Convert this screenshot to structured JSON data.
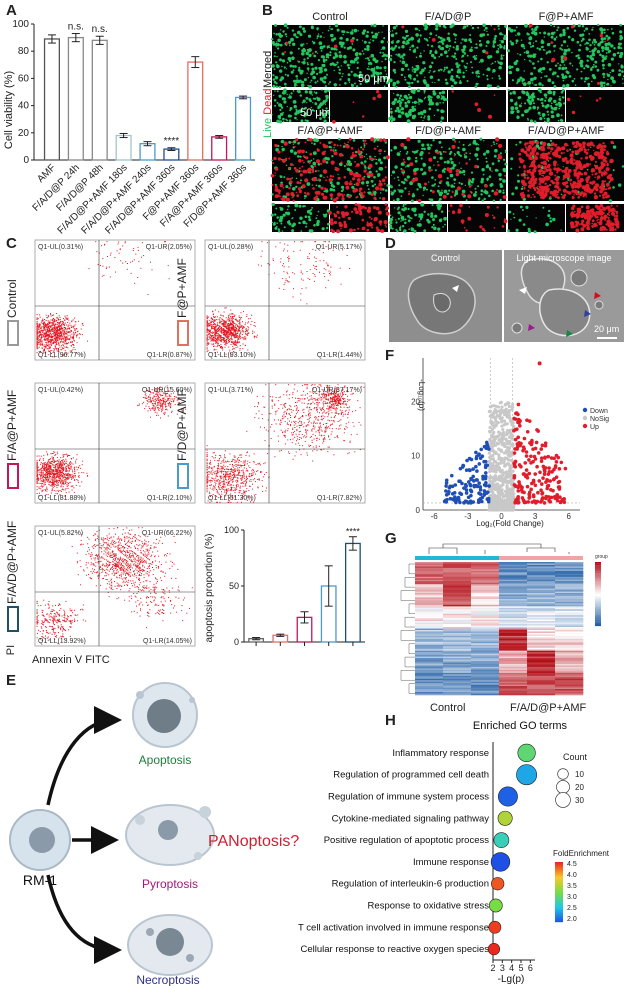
{
  "panel_labels": {
    "a": "A",
    "b": "B",
    "c": "C",
    "d": "D",
    "e": "E",
    "f": "F",
    "g": "G",
    "h": "H"
  },
  "colors": {
    "green": "#22c55e",
    "red": "#e11d2b",
    "blue": "#1f4fb6",
    "accent_pink": "#c2185b",
    "cyan": "#21b8d6"
  },
  "chart_data": [
    {
      "id": "cell-viability",
      "type": "bar",
      "ylabel": "Cell viability (%)",
      "ylim": [
        0,
        100
      ],
      "yticks": [
        0,
        20,
        40,
        60,
        80,
        100
      ],
      "categories": [
        "AMF",
        "F/A/D@P 24h",
        "F/A/D@P 48h",
        "F/A/D@P+AMF 180s",
        "F/A/D@P+AMF 240s",
        "F/A/D@P+AMF 360s",
        "F@P+AMF 360s",
        "F/A@P+AMF 360s",
        "F/D@P+AMF 360s"
      ],
      "values": [
        89,
        90,
        88,
        18,
        12,
        8,
        72,
        17,
        46
      ],
      "errors": [
        3,
        3,
        3,
        1.5,
        1.5,
        1,
        4,
        1,
        1
      ],
      "edge_colors": [
        "#555555",
        "#888888",
        "#888888",
        "#9ec7c7",
        "#4c9acb",
        "#1f4f8b",
        "#e07060",
        "#c2185b",
        "#4c9acb"
      ],
      "annotations": [
        {
          "index": 1,
          "text": "n.s."
        },
        {
          "index": 2,
          "text": "n.s."
        },
        {
          "index": 5,
          "text": "****"
        }
      ]
    },
    {
      "id": "apoptosis-proportion",
      "type": "bar",
      "ylabel": "apoptosis proportion (%)",
      "ylim": [
        0,
        100
      ],
      "yticks": [
        0,
        50,
        100
      ],
      "values": [
        3,
        6,
        22,
        50,
        88
      ],
      "errors": [
        1,
        1,
        5,
        18,
        6
      ],
      "edge_colors": [
        "#666666",
        "#e07060",
        "#c2185b",
        "#4c9acb",
        "#1f4f6b"
      ],
      "annotations": [
        {
          "index": 4,
          "text": "****"
        }
      ]
    },
    {
      "id": "volcano",
      "type": "scatter",
      "xlabel": "Log₂(Fold Change)",
      "ylabel": "-Log₁₀(p)",
      "xlim": [
        -7,
        7
      ],
      "ylim": [
        0,
        28
      ],
      "xticks": [
        -6,
        -3,
        0,
        3,
        6
      ],
      "yticks": [
        0,
        10,
        20
      ],
      "legend": [
        {
          "label": "Down",
          "color": "#1f4fb6"
        },
        {
          "label": "NoSig",
          "color": "#c8c8c8"
        },
        {
          "label": "Up",
          "color": "#e11d2b"
        }
      ]
    },
    {
      "id": "go-bubble",
      "type": "scatter",
      "title": "Enriched GO terms",
      "xlabel": "-Lg(p)",
      "xticks": [
        2,
        3,
        4,
        5,
        6
      ],
      "xlim": [
        2,
        6.5
      ],
      "terms": [
        "Inflammatory response",
        "Regulation of programmed cell death",
        "Regulation of immune system process",
        "Cytokine-mediated signaling pathway",
        "Positive regulation of apoptotic process",
        "Immune response",
        "Regulation of interleukin-6 production",
        "Response to oxidative stress",
        "T cell activation involved in immune response",
        "Cellular response to reactive oxygen species"
      ],
      "neg_log_p": [
        5.6,
        5.6,
        3.6,
        3.3,
        2.9,
        2.8,
        2.5,
        2.3,
        2.2,
        2.1
      ],
      "count": [
        22,
        32,
        28,
        12,
        14,
        26,
        8,
        9,
        7,
        6
      ],
      "fold_enrichment": [
        3.0,
        2.3,
        1.9,
        3.5,
        2.7,
        1.8,
        4.4,
        3.2,
        4.5,
        4.6
      ],
      "count_legend": {
        "title": "Count",
        "values": [
          10,
          20,
          30
        ]
      },
      "color_legend": {
        "title": "FoldEnrichment",
        "ticks": [
          4.5,
          4.0,
          3.5,
          3.0,
          2.5,
          2.0
        ]
      }
    }
  ],
  "panel_b": {
    "titles": [
      "Control",
      "F/A/D@P",
      "F@P+AMF",
      "F/A@P+AMF",
      "F/D@P+AMF",
      "F/A/D@P+AMF"
    ],
    "row_merged": "Merged",
    "row_live": "Live",
    "row_dead": "Dead",
    "scale": "50 μm"
  },
  "panel_c": {
    "plots": [
      {
        "label": "Control",
        "ul": "Q1-UL(0.31%)",
        "ur": "Q1-UR(2.05%)",
        "ll": "Q1-LL(96.77%)",
        "lr": "Q1-LR(0.87%)"
      },
      {
        "label": "F@P+AMF",
        "ul": "Q1-UL(0.28%)",
        "ur": "Q1-UR(5.17%)",
        "ll": "Q1-LL(93.10%)",
        "lr": "Q1-LR(1.44%)"
      },
      {
        "label": "F/A@P+AMF",
        "ul": "Q1-UL(0.42%)",
        "ur": "Q1-UR(15.60%)",
        "ll": "Q1-LL(81.88%)",
        "lr": "Q1-LR(2.10%)"
      },
      {
        "label": "F/D@P+AMF",
        "ul": "Q1-UL(3.71%)",
        "ur": "Q1-UR(37.17%)",
        "ll": "Q1-LL(51.30%)",
        "lr": "Q1-LR(7.82%)"
      },
      {
        "label": "F/A/D@P+AMF",
        "ul": "Q1-UL(5.82%)",
        "ur": "Q1-UR(66.22%)",
        "ll": "Q1-LL(13.92%)",
        "lr": "Q1-LR(14.05%)"
      }
    ],
    "pi": "PI",
    "annexin": "Annexin V FITC"
  },
  "panel_d": {
    "control": "Control",
    "light": "Light microscope image",
    "scale": "20 μm"
  },
  "panel_e": {
    "source": "RM-1",
    "apoptosis": "Apoptosis",
    "pyroptosis": "Pyroptosis",
    "necroptosis": "Necroptosis",
    "question": "PANoptosis?"
  },
  "panel_g": {
    "group_control": "Control",
    "group_treated": "F/A/D@P+AMF",
    "legend_title": "group"
  }
}
